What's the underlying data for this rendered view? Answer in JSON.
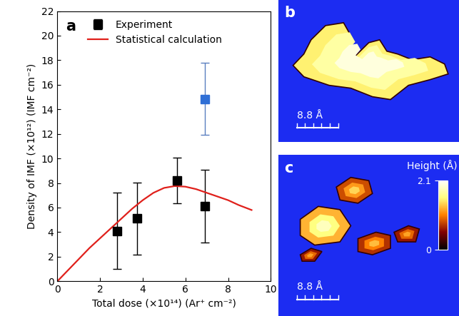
{
  "chart_data": {
    "type": "scatter",
    "panel_label": "a",
    "x_label": "Total dose (×10¹⁴) (Ar⁺ cm⁻²)",
    "y_label": "Density of IMF (×10¹²) (IMF cm⁻²)",
    "xlim": [
      0,
      10
    ],
    "xticks": [
      0,
      2,
      4,
      6,
      8,
      10
    ],
    "ylim": [
      0,
      22
    ],
    "yticks": [
      0,
      2,
      4,
      6,
      8,
      10,
      12,
      14,
      16,
      18,
      20,
      22
    ],
    "legend": "upper left",
    "series": [
      {
        "name": "Experiment",
        "type": "scatter",
        "color": "#000000",
        "marker": "square",
        "x": [
          2.8,
          3.75,
          5.6,
          6.9
        ],
        "values": [
          4.1,
          5.1,
          8.2,
          6.1
        ],
        "errors": [
          3.1,
          2.95,
          1.85,
          2.95
        ]
      },
      {
        "name": "Statistical calculation",
        "type": "line",
        "color": "#e0201b",
        "line_style": "solid",
        "x": [
          0,
          0.5,
          1,
          1.5,
          2,
          2.5,
          3,
          3.5,
          4,
          4.5,
          5,
          5.5,
          6,
          6.5,
          7,
          7.5,
          8,
          8.5,
          9.1
        ],
        "values": [
          0,
          0.9,
          1.8,
          2.7,
          3.5,
          4.3,
          5.1,
          5.9,
          6.6,
          7.2,
          7.6,
          7.75,
          7.7,
          7.5,
          7.2,
          6.9,
          6.6,
          6.2,
          5.8
        ]
      },
      {
        "type": "scatter",
        "color": "#2f6fd6",
        "marker": "square",
        "x": [
          6.9
        ],
        "values": [
          14.85
        ],
        "errors": [
          2.95
        ]
      }
    ]
  },
  "images": [
    {
      "label": "b",
      "scale_bar": "8.8 Å"
    },
    {
      "label": "c",
      "scale_bar": "8.8 Å",
      "colorbar": {
        "label": "Height (Å)",
        "range": [
          0,
          2.1
        ],
        "ticks": [
          0,
          2.1
        ]
      }
    }
  ]
}
